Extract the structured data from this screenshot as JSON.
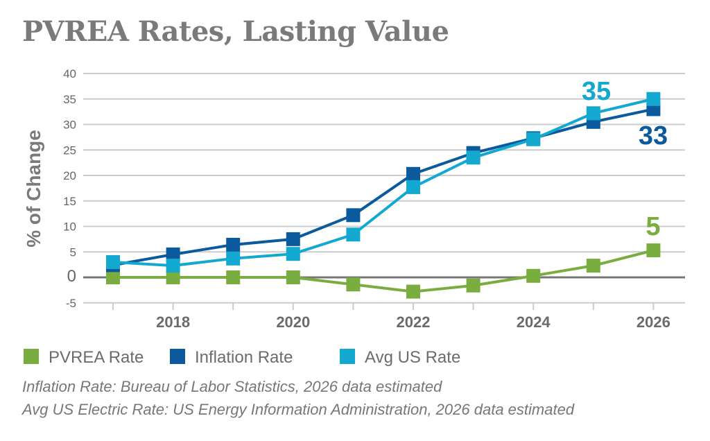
{
  "chart_data": {
    "type": "line",
    "title": "PVREA Rates, Lasting Value",
    "xlabel": "",
    "ylabel": "% of Change",
    "x": [
      2017,
      2018,
      2019,
      2020,
      2021,
      2022,
      2023,
      2024,
      2025,
      2026
    ],
    "xticks": [
      "2018",
      "2020",
      "2022",
      "2024",
      "2026"
    ],
    "yticks": [
      "-5",
      "0",
      "5",
      "10",
      "15",
      "20",
      "25",
      "30",
      "35",
      "40"
    ],
    "ylim": [
      -5,
      40
    ],
    "grid": true,
    "legend_position": "bottom",
    "series": [
      {
        "name": "PVREA Rate",
        "color": "#7aad3f",
        "values": [
          0,
          0,
          0,
          0,
          -1.4,
          -2.8,
          -1.6,
          0.3,
          2.3,
          5.3
        ],
        "end_label": "5"
      },
      {
        "name": "Inflation Rate",
        "color": "#0b5a9e",
        "values": [
          2.4,
          4.5,
          6.4,
          7.5,
          12.2,
          20.3,
          24.4,
          27.3,
          30.5,
          33
        ],
        "end_label": "33"
      },
      {
        "name": "Avg US Rate",
        "color": "#13a8d0",
        "values": [
          3.0,
          2.3,
          3.7,
          4.6,
          8.4,
          17.7,
          23.5,
          27.1,
          32.2,
          35
        ],
        "end_label": "35"
      }
    ],
    "notes": [
      "Inflation Rate: Bureau of Labor Statistics, 2026 data estimated",
      "Avg US Electric Rate: US Energy Information Administration, 2026 data estimated"
    ]
  }
}
